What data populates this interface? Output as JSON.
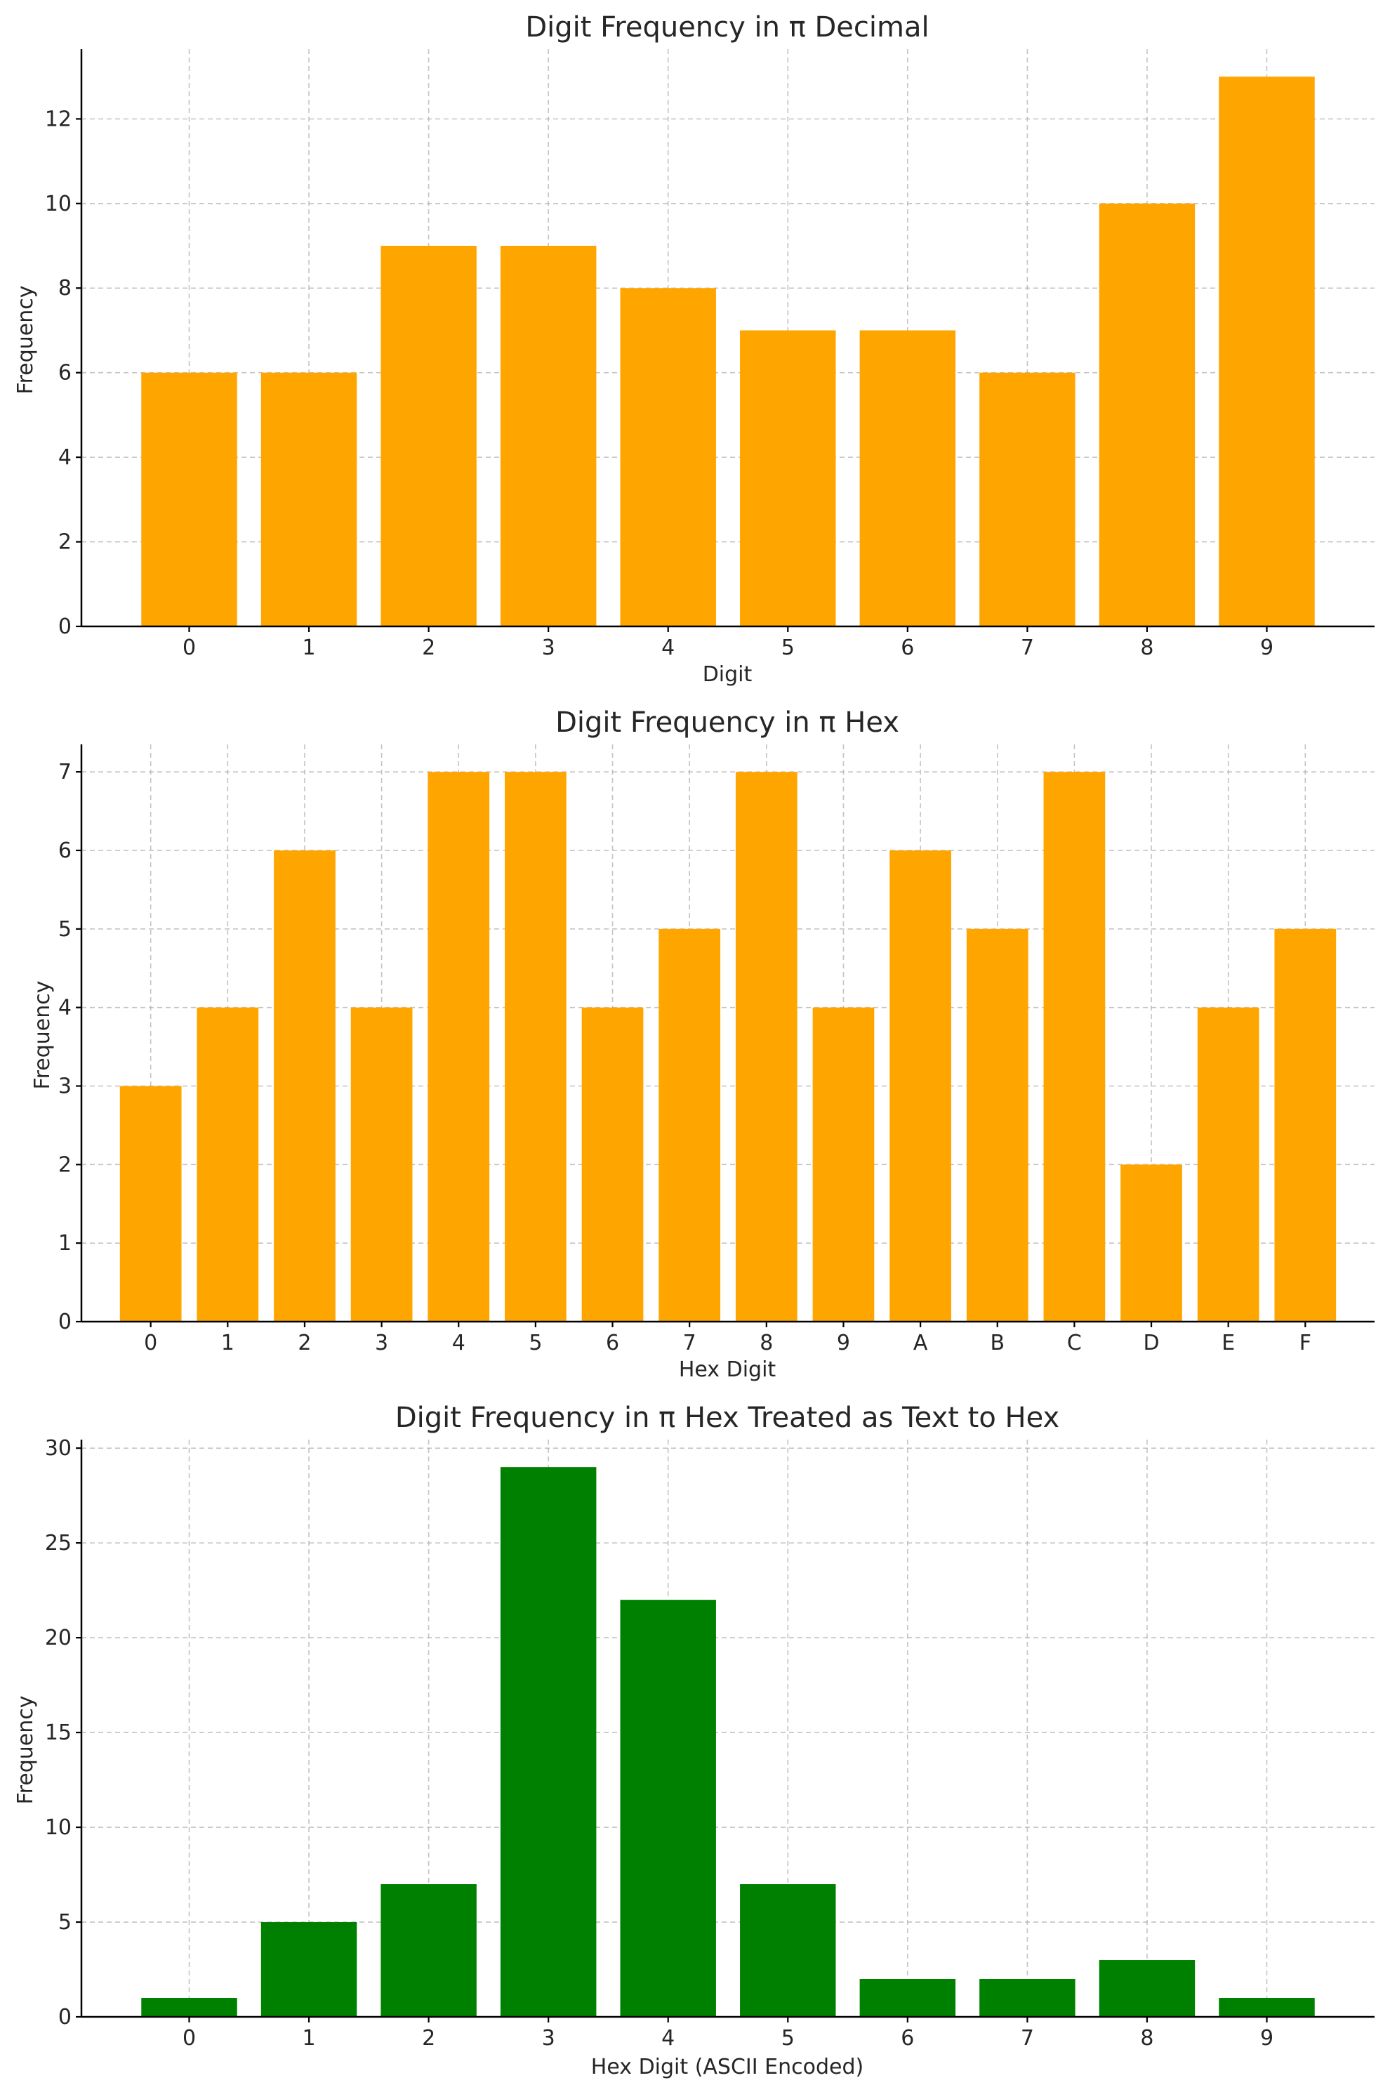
{
  "chart_data": [
    {
      "type": "bar",
      "title": "Digit Frequency in π Decimal",
      "xlabel": "Digit",
      "ylabel": "Frequency",
      "categories": [
        "0",
        "1",
        "2",
        "3",
        "4",
        "5",
        "6",
        "7",
        "8",
        "9"
      ],
      "values": [
        6,
        6,
        9,
        9,
        8,
        7,
        7,
        6,
        10,
        13
      ],
      "ylim": [
        0,
        13.65
      ],
      "yticks": [
        0,
        2,
        4,
        6,
        8,
        10,
        12
      ],
      "bar_color": "#ffa500",
      "grid": true,
      "legend": "none"
    },
    {
      "type": "bar",
      "title": "Digit Frequency in π Hex",
      "xlabel": "Hex Digit",
      "ylabel": "Frequency",
      "categories": [
        "0",
        "1",
        "2",
        "3",
        "4",
        "5",
        "6",
        "7",
        "8",
        "9",
        "A",
        "B",
        "C",
        "D",
        "E",
        "F"
      ],
      "values": [
        3,
        4,
        6,
        4,
        7,
        7,
        4,
        5,
        7,
        4,
        6,
        5,
        7,
        2,
        4,
        5
      ],
      "ylim": [
        0,
        7.35
      ],
      "yticks": [
        0,
        1,
        2,
        3,
        4,
        5,
        6,
        7
      ],
      "bar_color": "#ffa500",
      "grid": true,
      "legend": "none"
    },
    {
      "type": "bar",
      "title": "Digit Frequency in π Hex Treated as Text to Hex",
      "xlabel": "Hex Digit (ASCII Encoded)",
      "ylabel": "Frequency",
      "categories": [
        "0",
        "1",
        "2",
        "3",
        "4",
        "5",
        "6",
        "7",
        "8",
        "9"
      ],
      "values": [
        1,
        5,
        7,
        29,
        22,
        7,
        2,
        2,
        3,
        1
      ],
      "ylim": [
        0,
        30.45
      ],
      "yticks": [
        0,
        5,
        10,
        15,
        20,
        25,
        30
      ],
      "bar_color": "#008000",
      "grid": true,
      "legend": "none"
    }
  ]
}
